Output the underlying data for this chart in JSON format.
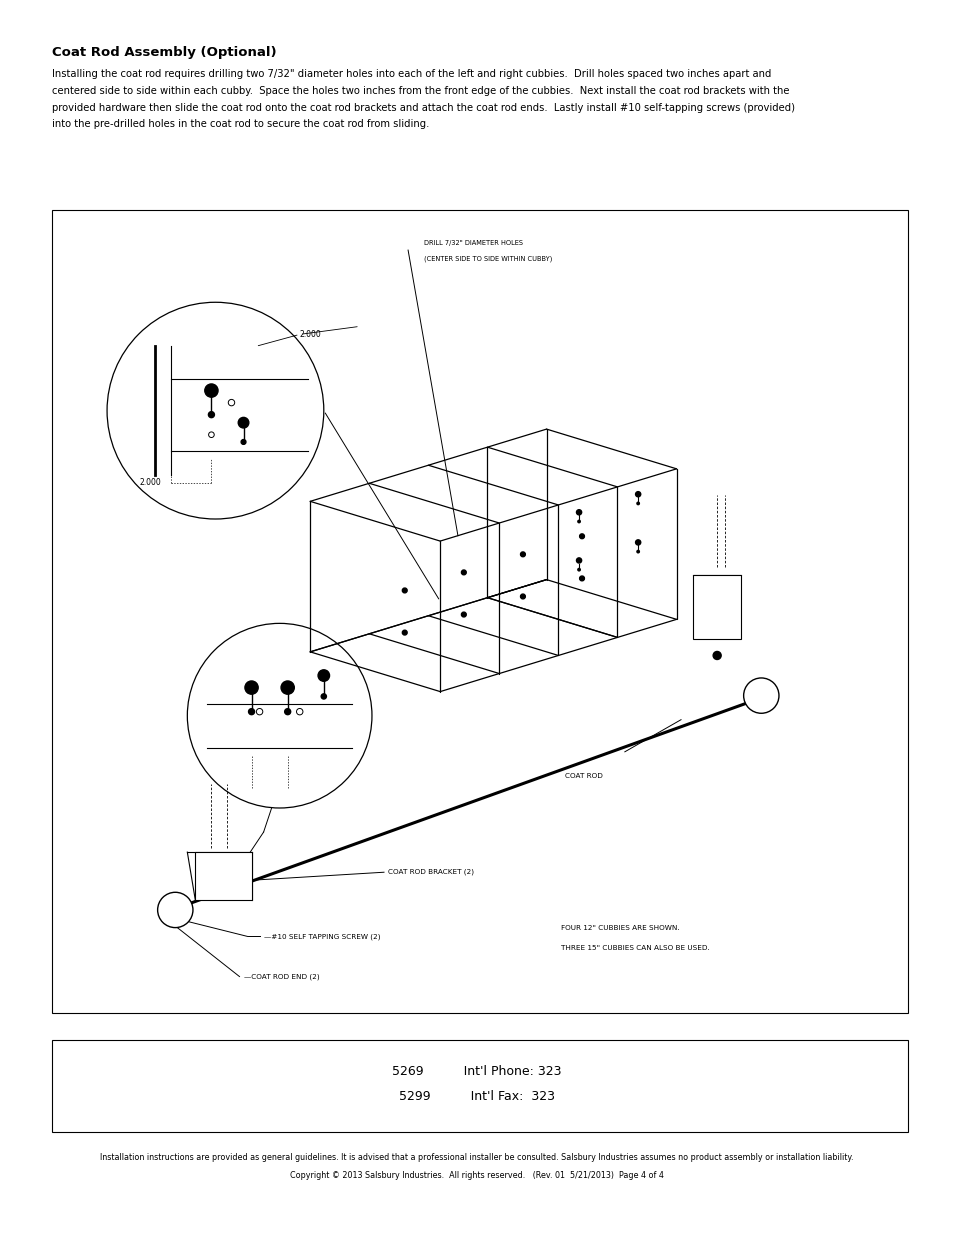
{
  "title": "Coat Rod Assembly (Optional)",
  "body_text_line1": "Installing the coat rod requires drilling two 7/32\" diameter holes into each of the left and right cubbies.  Drill holes spaced two inches apart and",
  "body_text_line2": "centered side to side within each cubby.  Space the holes two inches from the front edge of the cubbies.  Next install the coat rod brackets with the",
  "body_text_line3": "provided hardware then slide the coat rod onto the coat rod brackets and attach the coat rod ends.  Lastly install #10 self-tapping screws (provided)",
  "body_text_line4": "into the pre-drilled holes in the coat rod to secure the coat rod from sliding.",
  "contact_line1": "5269          Int'l Phone: 323",
  "contact_line2": "5299          Int'l Fax:  323",
  "footer_line1": "Installation instructions are provided as general guidelines. It is advised that a professional installer be consulted. Salsbury Industries assumes no product assembly or installation liability.",
  "footer_line2": "Copyright © 2013 Salsbury Industries.  All rights reserved.   (Rev. 01  5/21/2013)  Page 4 of 4",
  "bg_color": "#ffffff",
  "text_color": "#000000",
  "border_color": "#000000"
}
